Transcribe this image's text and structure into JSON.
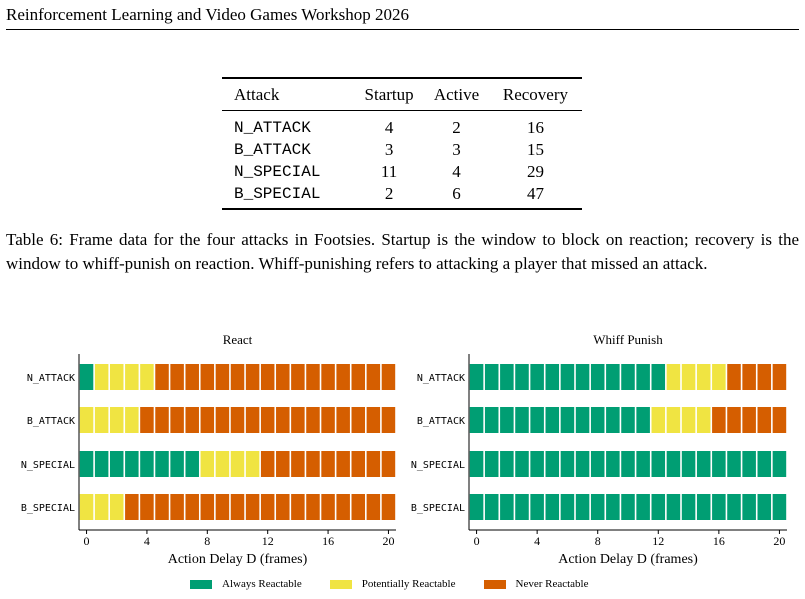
{
  "header": {
    "title": "Reinforcement Learning and Video Games Workshop 2026"
  },
  "table": {
    "columns": [
      "Attack",
      "Startup",
      "Active",
      "Recovery"
    ],
    "rows": [
      {
        "attack": "N_ATTACK",
        "startup": "4",
        "active": "2",
        "recovery": "16"
      },
      {
        "attack": "B_ATTACK",
        "startup": "3",
        "active": "3",
        "recovery": "15"
      },
      {
        "attack": "N_SPECIAL",
        "startup": "11",
        "active": "4",
        "recovery": "29"
      },
      {
        "attack": "B_SPECIAL",
        "startup": "2",
        "active": "6",
        "recovery": "47"
      }
    ]
  },
  "caption": "Table 6: Frame data for the four attacks in Footsies. Startup is the window to block on reaction; recovery is the window to whiff-punish on reaction. Whiff-punishing refers to attacking a player that missed an attack.",
  "legend": {
    "items": [
      {
        "label": "Always Reactable",
        "color": "#009e73"
      },
      {
        "label": "Potentially Reactable",
        "color": "#f0e442"
      },
      {
        "label": "Never Reactable",
        "color": "#d55e00"
      }
    ]
  },
  "chart_data": [
    {
      "type": "heatmap",
      "title": "React",
      "xlabel": "Action Delay D (frames)",
      "x": [
        0,
        1,
        2,
        3,
        4,
        5,
        6,
        7,
        8,
        9,
        10,
        11,
        12,
        13,
        14,
        15,
        16,
        17,
        18,
        19,
        20
      ],
      "xticks": [
        0,
        4,
        8,
        12,
        16,
        20
      ],
      "categories": [
        "N_ATTACK",
        "B_ATTACK",
        "N_SPECIAL",
        "B_SPECIAL"
      ],
      "series": [
        {
          "category": "N_ATTACK",
          "always_until": 0,
          "potential_until": 4
        },
        {
          "category": "B_ATTACK",
          "always_until": -1,
          "potential_until": 3
        },
        {
          "category": "N_SPECIAL",
          "always_until": 7,
          "potential_until": 11
        },
        {
          "category": "B_SPECIAL",
          "always_until": -1,
          "potential_until": 2
        }
      ]
    },
    {
      "type": "heatmap",
      "title": "Whiff Punish",
      "xlabel": "Action Delay D (frames)",
      "x": [
        0,
        1,
        2,
        3,
        4,
        5,
        6,
        7,
        8,
        9,
        10,
        11,
        12,
        13,
        14,
        15,
        16,
        17,
        18,
        19,
        20
      ],
      "xticks": [
        0,
        4,
        8,
        12,
        16,
        20
      ],
      "categories": [
        "N_ATTACK",
        "B_ATTACK",
        "N_SPECIAL",
        "B_SPECIAL"
      ],
      "series": [
        {
          "category": "N_ATTACK",
          "always_until": 12,
          "potential_until": 16
        },
        {
          "category": "B_ATTACK",
          "always_until": 11,
          "potential_until": 15
        },
        {
          "category": "N_SPECIAL",
          "always_until": 20,
          "potential_until": 20
        },
        {
          "category": "B_SPECIAL",
          "always_until": 20,
          "potential_until": 20
        }
      ]
    }
  ]
}
